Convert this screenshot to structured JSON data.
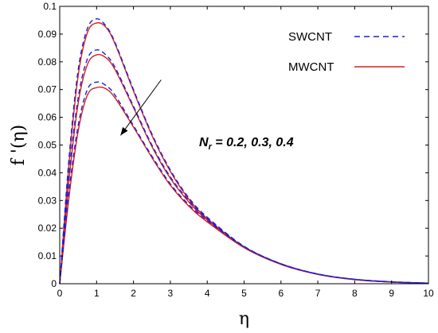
{
  "chart_data": {
    "type": "line",
    "xlabel": "η",
    "ylabel": "f '(η)",
    "xlim": [
      0,
      10
    ],
    "ylim": [
      0,
      0.1
    ],
    "x_ticks": [
      "0",
      "1",
      "2",
      "3",
      "4",
      "5",
      "6",
      "7",
      "8",
      "9",
      "10"
    ],
    "y_ticks": [
      "0",
      "0.01",
      "0.02",
      "0.03",
      "0.04",
      "0.05",
      "0.06",
      "0.07",
      "0.08",
      "0.09",
      "0.1"
    ],
    "legend_position": "top-right",
    "legend": [
      {
        "label": "SWCNT",
        "color": "#1f1fd6",
        "style": "dashed"
      },
      {
        "label": "MWCNT",
        "color": "#d62020",
        "style": "solid"
      }
    ],
    "annotation": {
      "var": "N",
      "sub": "r",
      "text": " = 0.2, 0.3, 0.4",
      "arrow_from": [
        2.75,
        0.0735
      ],
      "arrow_to": [
        1.65,
        0.0535
      ]
    },
    "series": [
      {
        "name": "SWCNT",
        "param": "Nr = 0.2",
        "color": "#1f1fd6",
        "style": "dashed",
        "x": [
          0,
          0.25,
          0.5,
          0.75,
          1,
          1.25,
          1.5,
          2,
          2.5,
          3,
          3.5,
          4,
          5,
          6,
          7,
          8,
          9,
          10
        ],
        "y": [
          0.0,
          0.045,
          0.077,
          0.092,
          0.0955,
          0.093,
          0.087,
          0.07,
          0.054,
          0.041,
          0.031,
          0.024,
          0.0135,
          0.0072,
          0.0035,
          0.0016,
          0.0007,
          0.0002
        ]
      },
      {
        "name": "SWCNT",
        "param": "Nr = 0.3",
        "color": "#1f1fd6",
        "style": "dashed",
        "x": [
          0,
          0.25,
          0.5,
          0.75,
          1,
          1.25,
          1.5,
          2,
          2.5,
          3,
          3.5,
          4,
          5,
          6,
          7,
          8,
          9,
          10
        ],
        "y": [
          0.0,
          0.039,
          0.067,
          0.081,
          0.0843,
          0.0825,
          0.078,
          0.064,
          0.05,
          0.0385,
          0.03,
          0.0235,
          0.0134,
          0.0072,
          0.0035,
          0.0016,
          0.0007,
          0.0002
        ]
      },
      {
        "name": "SWCNT",
        "param": "Nr = 0.4",
        "color": "#1f1fd6",
        "style": "dashed",
        "x": [
          0,
          0.25,
          0.5,
          0.75,
          1,
          1.25,
          1.5,
          2,
          2.5,
          3,
          3.5,
          4,
          5,
          6,
          7,
          8,
          9,
          10
        ],
        "y": [
          0.0,
          0.033,
          0.057,
          0.07,
          0.0727,
          0.0715,
          0.068,
          0.057,
          0.046,
          0.036,
          0.0285,
          0.0228,
          0.0133,
          0.0072,
          0.0035,
          0.0016,
          0.0007,
          0.0002
        ]
      },
      {
        "name": "MWCNT",
        "param": "Nr = 0.2",
        "color": "#d62020",
        "style": "solid",
        "x": [
          0,
          0.25,
          0.5,
          0.75,
          1,
          1.25,
          1.5,
          2,
          2.5,
          3,
          3.5,
          4,
          5,
          6,
          7,
          8,
          9,
          10
        ],
        "y": [
          0.0,
          0.043,
          0.075,
          0.0905,
          0.094,
          0.0925,
          0.0865,
          0.0695,
          0.0535,
          0.0405,
          0.0305,
          0.0235,
          0.0132,
          0.007,
          0.0034,
          0.0015,
          0.0006,
          0.0002
        ]
      },
      {
        "name": "MWCNT",
        "param": "Nr = 0.3",
        "color": "#d62020",
        "style": "solid",
        "x": [
          0,
          0.25,
          0.5,
          0.75,
          1,
          1.25,
          1.5,
          2,
          2.5,
          3,
          3.5,
          4,
          5,
          6,
          7,
          8,
          9,
          10
        ],
        "y": [
          0.0,
          0.037,
          0.065,
          0.079,
          0.0825,
          0.0815,
          0.0772,
          0.0635,
          0.0495,
          0.038,
          0.0295,
          0.023,
          0.0131,
          0.007,
          0.0034,
          0.0015,
          0.0006,
          0.0002
        ]
      },
      {
        "name": "MWCNT",
        "param": "Nr = 0.4",
        "color": "#d62020",
        "style": "solid",
        "x": [
          0,
          0.25,
          0.5,
          0.75,
          1,
          1.25,
          1.5,
          2,
          2.5,
          3,
          3.5,
          4,
          5,
          6,
          7,
          8,
          9,
          10
        ],
        "y": [
          0.0,
          0.031,
          0.055,
          0.068,
          0.0707,
          0.0703,
          0.067,
          0.0565,
          0.0455,
          0.0355,
          0.028,
          0.0223,
          0.013,
          0.007,
          0.0034,
          0.0015,
          0.0006,
          0.0002
        ]
      }
    ]
  }
}
